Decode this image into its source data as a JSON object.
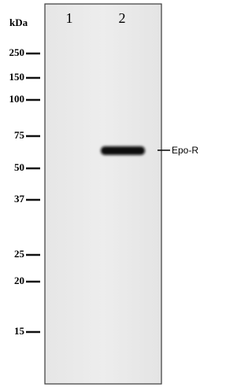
{
  "header": {
    "unit": "kDa",
    "lanes": [
      "1",
      "2"
    ]
  },
  "markers": [
    "250",
    "150",
    "100",
    "75",
    "50",
    "37",
    "25",
    "20",
    "15"
  ],
  "band": {
    "label": "Epo-R"
  }
}
